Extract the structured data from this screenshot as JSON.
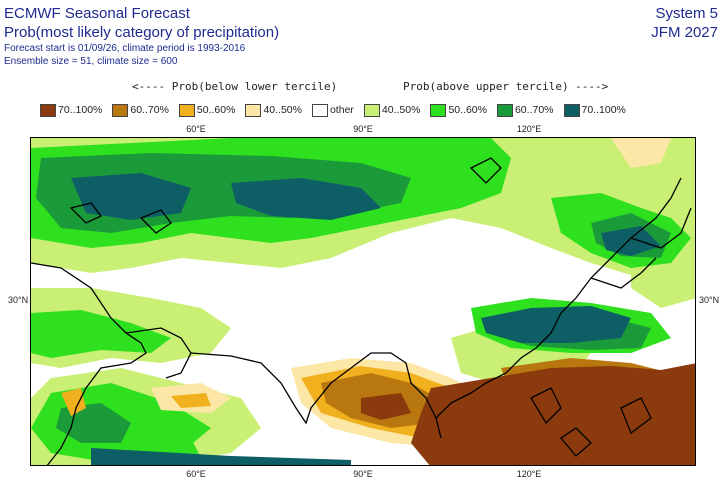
{
  "header": {
    "title": "ECMWF Seasonal Forecast",
    "subtitle": "Prob(most likely category of precipitation)",
    "forecast_info": "Forecast start is 01/09/26, climate period is 1993-2016",
    "ensemble_info": "Ensemble size = 51, climate size = 600",
    "system": "System 5",
    "period": "JFM 2027"
  },
  "legend": {
    "caption_below": "<---- Prob(below lower tercile)",
    "caption_above": "Prob(above upper tercile) ---->",
    "items": [
      {
        "label": "70..100%",
        "color": "#8b3a0e"
      },
      {
        "label": "60..70%",
        "color": "#b8780f"
      },
      {
        "label": "50..60%",
        "color": "#f1b01d"
      },
      {
        "label": "40..50%",
        "color": "#fde7a6"
      },
      {
        "label": "other",
        "color": "#ffffff"
      },
      {
        "label": "40..50%",
        "color": "#c9f075"
      },
      {
        "label": "50..60%",
        "color": "#2ee01e"
      },
      {
        "label": "60..70%",
        "color": "#1b9a3a"
      },
      {
        "label": "70..100%",
        "color": "#0e5e66"
      }
    ]
  },
  "axes": {
    "lon_labels": [
      "60°E",
      "90°E",
      "120°E"
    ],
    "lat_labels": [
      "30°N",
      "30°N"
    ]
  }
}
